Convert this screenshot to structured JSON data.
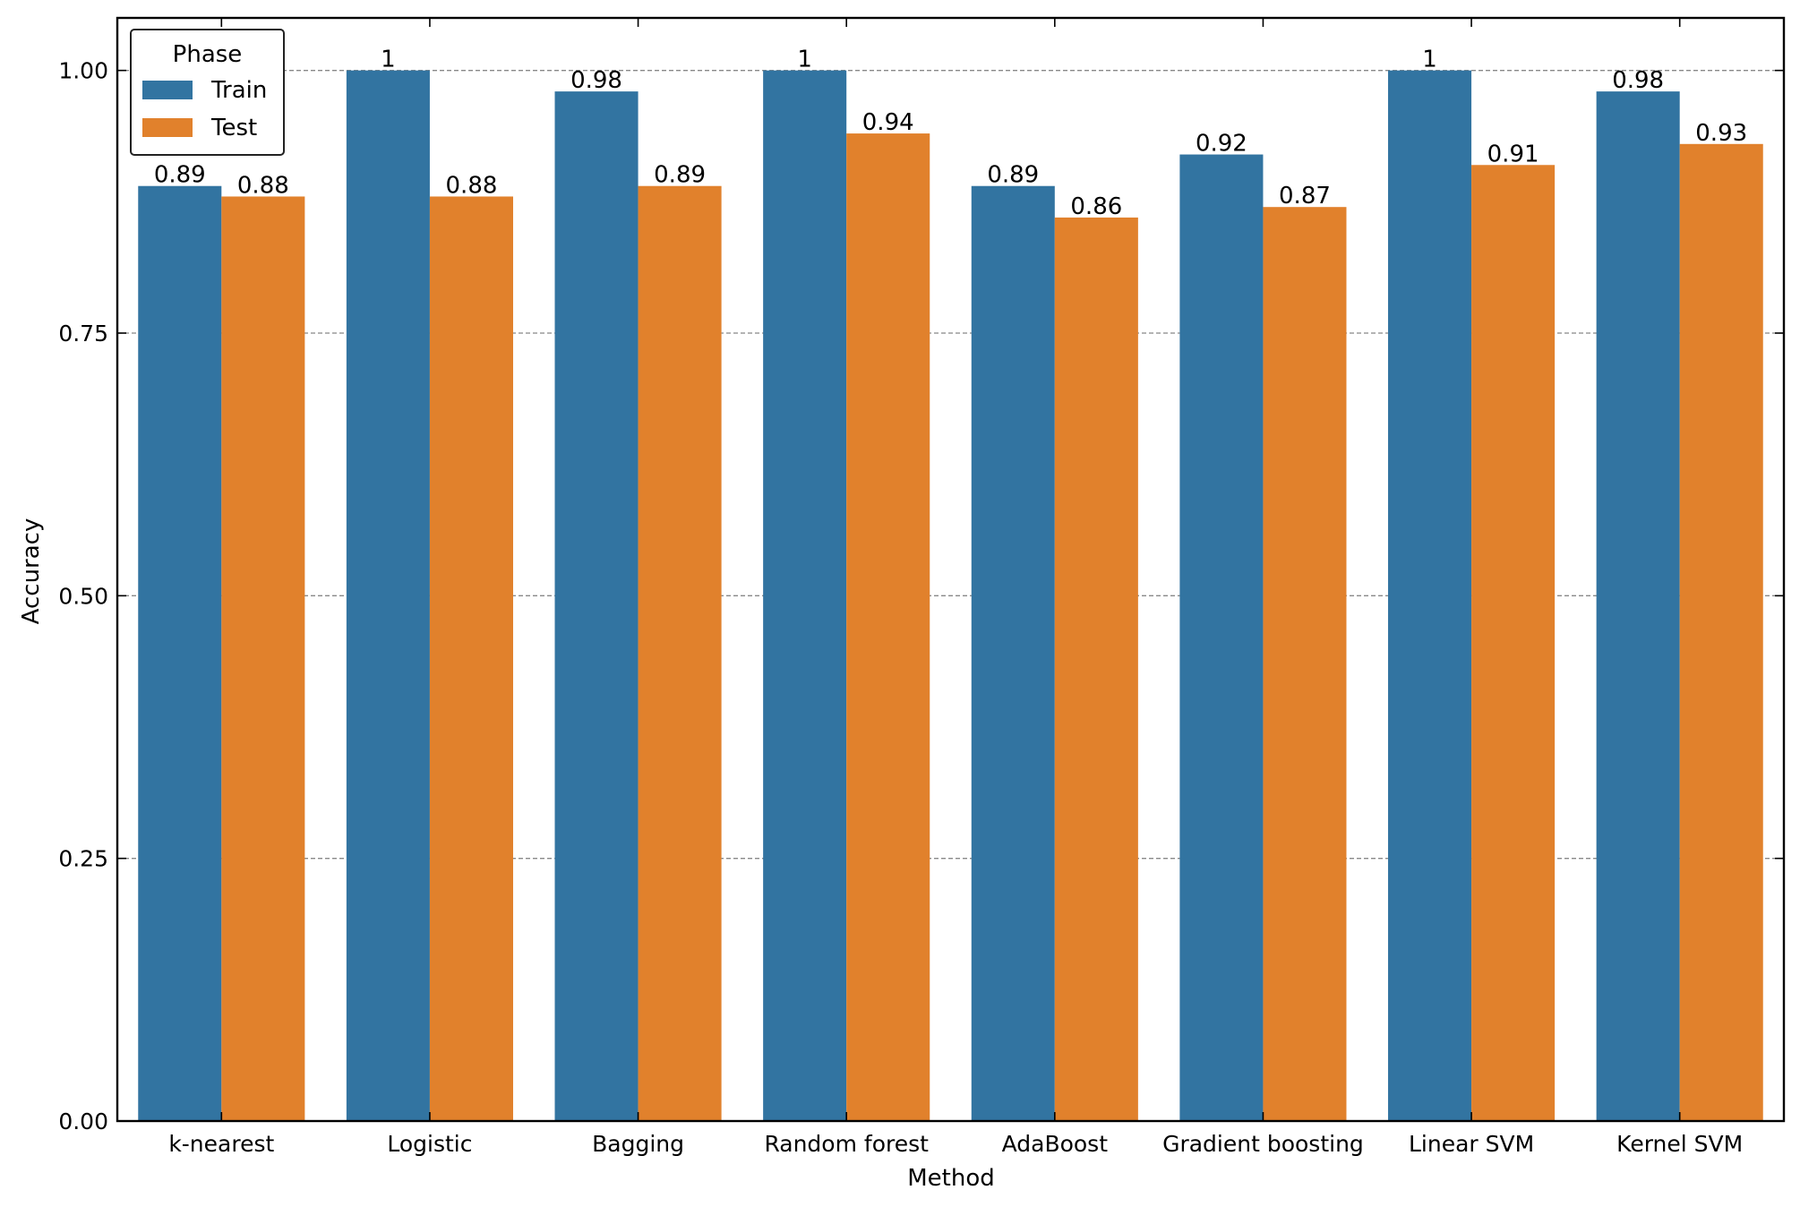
{
  "chart_data": {
    "type": "bar",
    "title": "",
    "xlabel": "Method",
    "ylabel": "Accuracy",
    "ylim": [
      0,
      1.05
    ],
    "yticks": [
      0.0,
      0.25,
      0.5,
      0.75,
      1.0
    ],
    "ytick_labels": [
      "0.00",
      "0.25",
      "0.50",
      "0.75",
      "1.00"
    ],
    "grid": "horizontal dashed",
    "categories": [
      "k-nearest",
      "Logistic",
      "Bagging",
      "Random forest",
      "AdaBoost",
      "Gradient boosting",
      "Linear SVM",
      "Kernel SVM"
    ],
    "series": [
      {
        "name": "Train",
        "color": "#3274a1",
        "values": [
          0.89,
          1,
          0.98,
          1,
          0.89,
          0.92,
          1,
          0.98
        ],
        "labels": [
          "0.89",
          "1",
          "0.98",
          "1",
          "0.89",
          "0.92",
          "1",
          "0.98"
        ]
      },
      {
        "name": "Test",
        "color": "#e1812c",
        "values": [
          0.88,
          0.88,
          0.89,
          0.94,
          0.86,
          0.87,
          0.91,
          0.93
        ],
        "labels": [
          "0.88",
          "0.88",
          "0.89",
          "0.94",
          "0.86",
          "0.87",
          "0.91",
          "0.93"
        ]
      }
    ],
    "legend": {
      "title": "Phase",
      "position": "top-left"
    }
  }
}
